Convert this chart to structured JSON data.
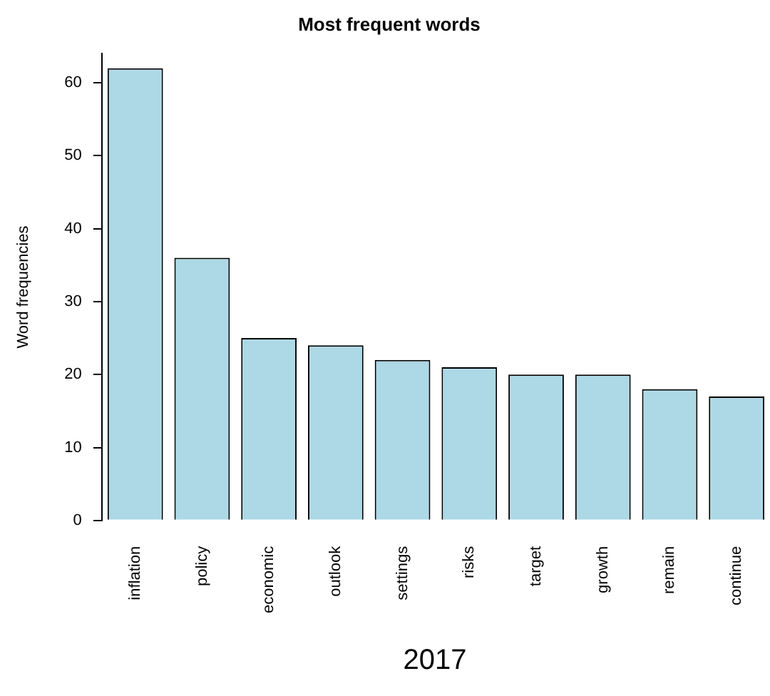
{
  "chart_data": {
    "type": "bar",
    "title": "Most frequent words",
    "ylabel": "Word frequencies",
    "categories": [
      "inflation",
      "policy",
      "economic",
      "outlook",
      "settings",
      "risks",
      "target",
      "growth",
      "remain",
      "continue"
    ],
    "values": [
      62,
      36,
      25,
      24,
      22,
      21,
      20,
      20,
      18,
      17
    ],
    "color": "#add8e6",
    "ylim": [
      0,
      64
    ],
    "yticks": [
      0,
      10,
      20,
      30,
      40,
      50,
      60
    ],
    "grid": false,
    "legend": false,
    "annotations": [
      "2017"
    ]
  }
}
